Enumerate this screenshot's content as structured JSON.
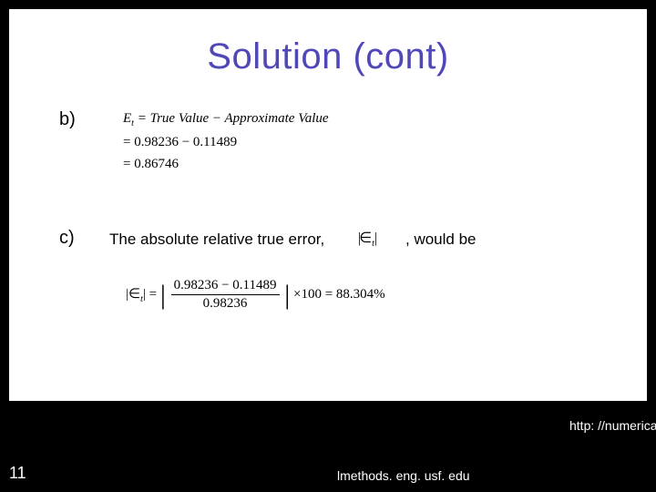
{
  "colors": {
    "page_bg": "#000000",
    "slide_bg": "#ffffff",
    "title_color": "#5048b8",
    "body_text": "#000000",
    "footer_text": "#ffffff"
  },
  "title": "Solution (cont)",
  "partB": {
    "label": "b)",
    "line1_lhs": "E",
    "line1_sub": "t",
    "line1_rhs": " = True Value − Approximate Value",
    "line2": "= 0.98236 − 0.11489",
    "line3": "= 0.86746"
  },
  "partC": {
    "label": "c)",
    "intro": "The absolute relative true error,",
    "epsilon_bars_open": "|",
    "epsilon_sym": "∈",
    "epsilon_sub": "t",
    "epsilon_bars_close": "|",
    "tail": ", would be",
    "lhs_text": "|∈t| = ",
    "frac_num": "0.98236 − 0.11489",
    "frac_den": "0.98236",
    "rhs_text": " ×100 = 88.304%"
  },
  "footer": {
    "page_num": "11",
    "mid": "lmethods. eng. usf. edu",
    "right": "http: //numerica"
  }
}
